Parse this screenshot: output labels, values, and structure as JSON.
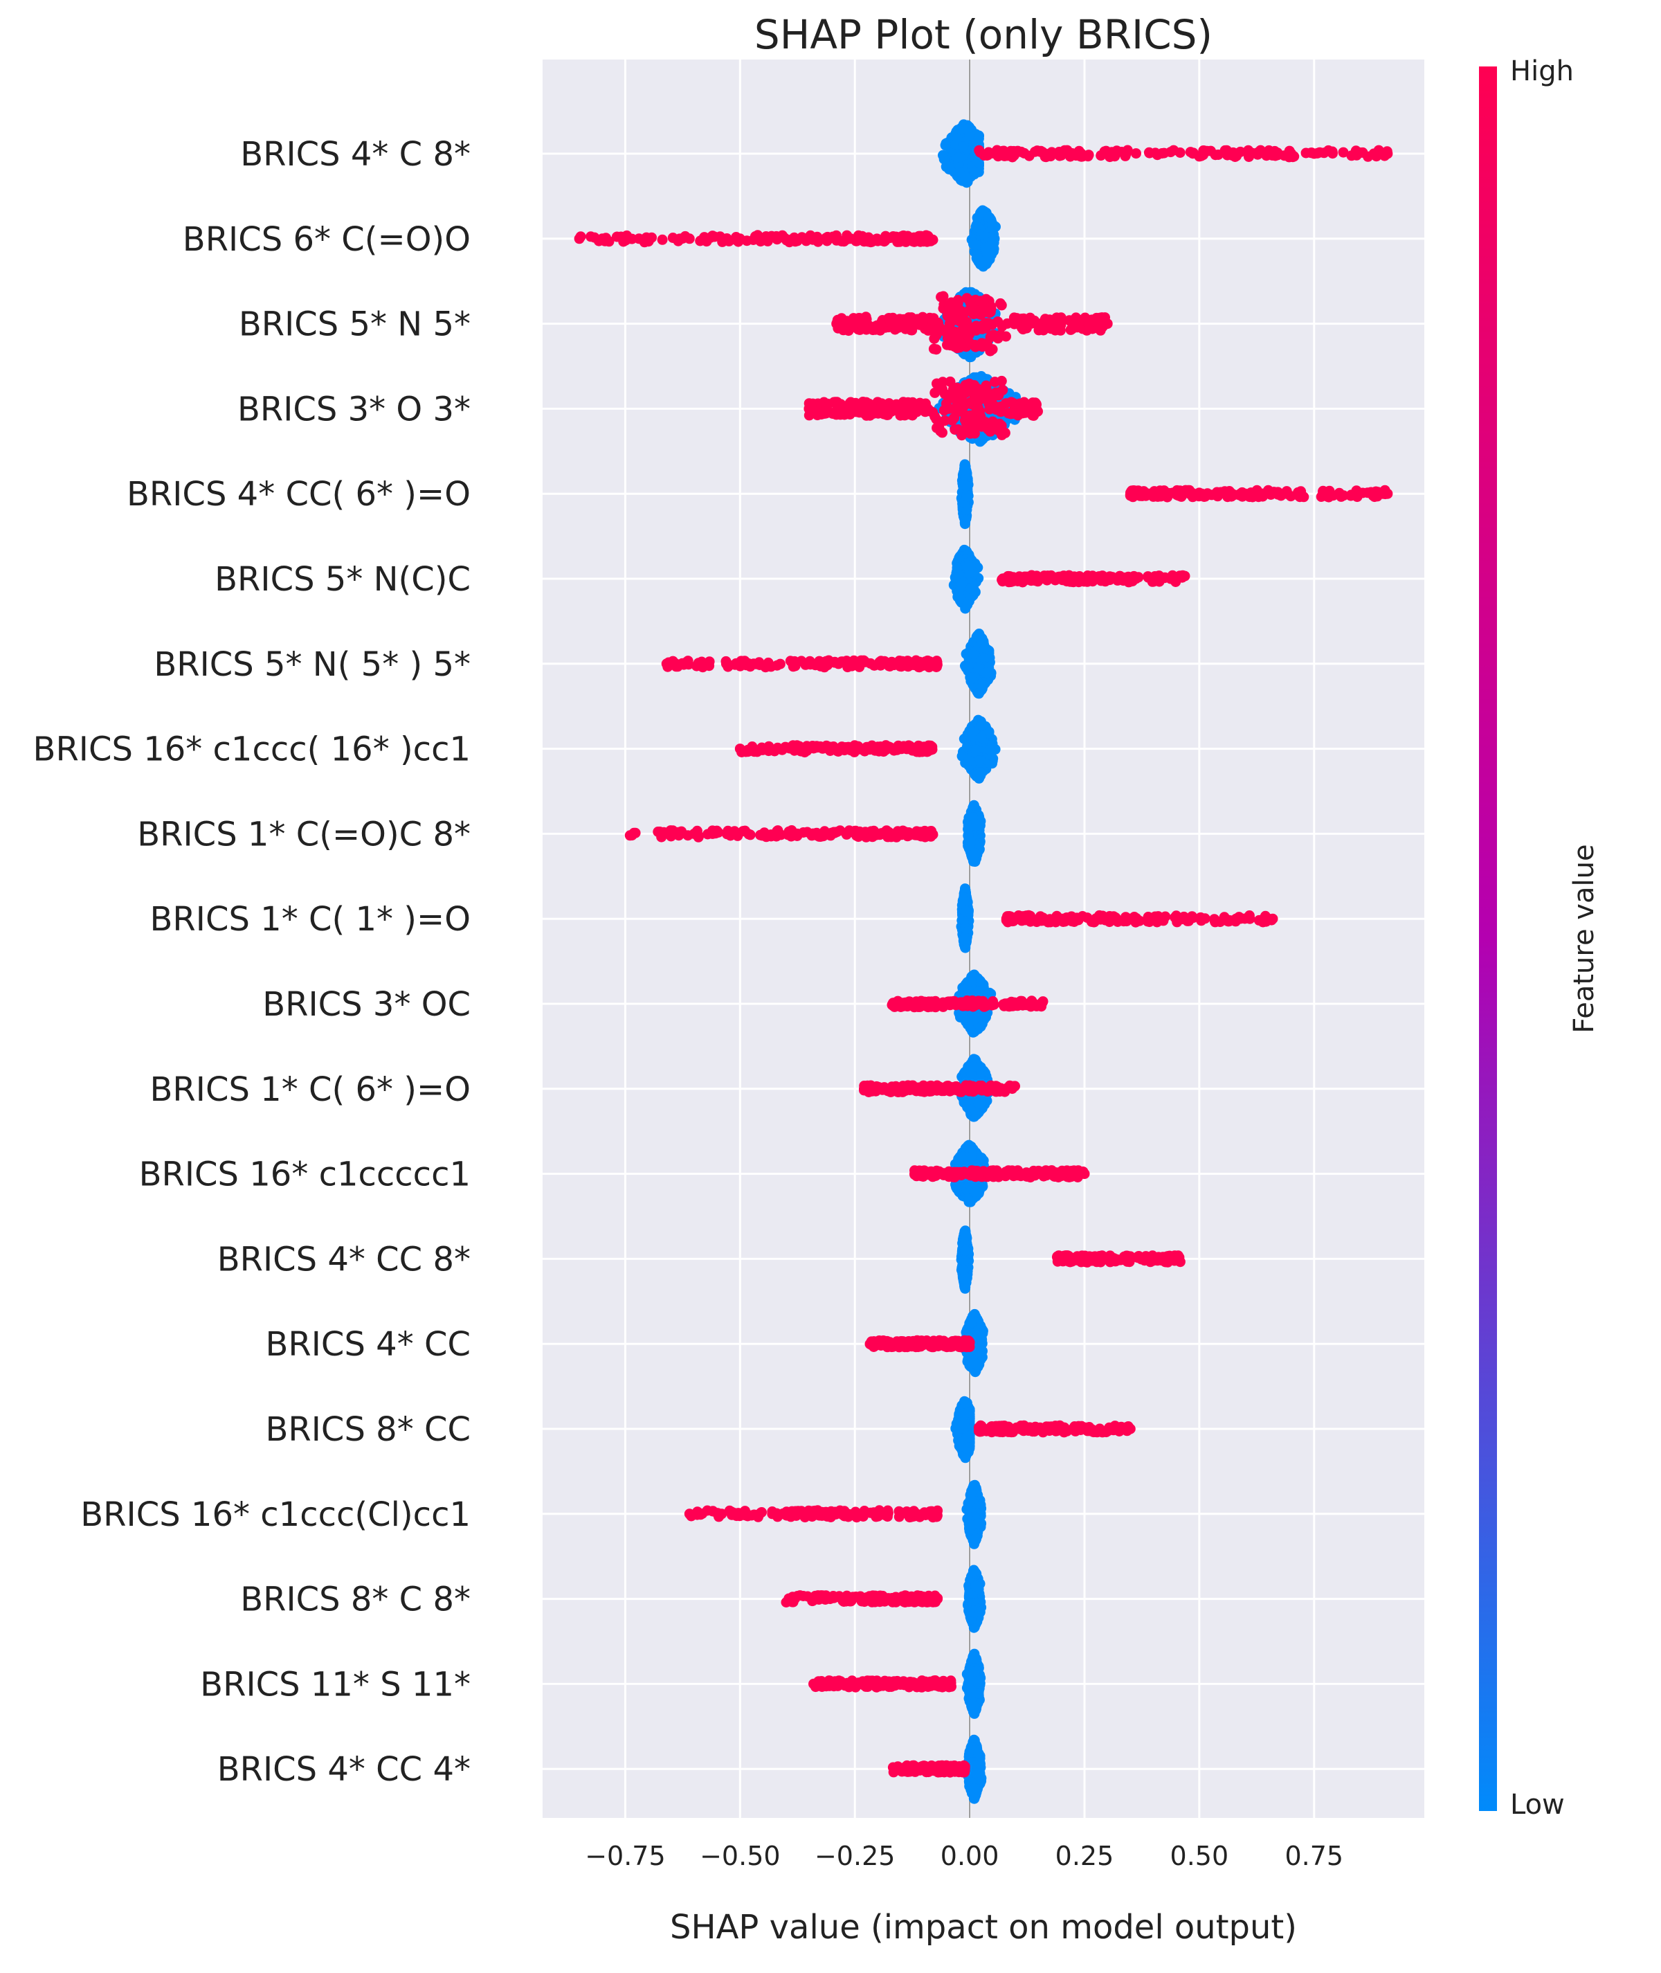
{
  "chart_data": {
    "type": "scatter",
    "title": "SHAP Plot (only BRICS)",
    "xlabel": "SHAP value (impact on model output)",
    "ylabel": "",
    "xlim": [
      -0.93,
      0.99
    ],
    "xticks": [
      -0.75,
      -0.5,
      -0.25,
      0.0,
      0.25,
      0.5,
      0.75
    ],
    "xtick_labels": [
      "−0.75",
      "−0.50",
      "−0.25",
      "0.00",
      "0.25",
      "0.50",
      "0.75"
    ],
    "grid": true,
    "colorbar": {
      "label": "Feature value",
      "high_label": "High",
      "low_label": "Low",
      "high_color": "#ff0052",
      "mid_color": "#b400b0",
      "low_color": "#008bfb"
    },
    "background_color": "#eaeaf2",
    "features": [
      {
        "name": "BRICS  4* C 8*",
        "high": {
          "min": 0.02,
          "max": 0.91,
          "sparse": [
            0.65,
            0.67,
            0.7,
            0.75,
            0.88,
            0.9,
            0.91
          ]
        },
        "low": {
          "min": -0.1,
          "max": 0.02,
          "center": -0.01
        }
      },
      {
        "name": "BRICS  6* C(=O)O",
        "high": {
          "min": -0.85,
          "max": -0.08,
          "sparse": [
            -0.85,
            -0.8,
            -0.74,
            -0.72,
            -0.61,
            -0.58
          ]
        },
        "low": {
          "min": -0.01,
          "max": 0.06,
          "center": 0.03
        }
      },
      {
        "name": "BRICS  5* N 5*",
        "high": {
          "min": -0.29,
          "max": 0.3,
          "sparse": [
            -0.29,
            -0.26,
            0.3
          ]
        },
        "low": {
          "min": -0.08,
          "max": 0.07,
          "center": 0.0
        },
        "mixed": true
      },
      {
        "name": "BRICS  3* O 3*",
        "high": {
          "min": -0.35,
          "max": 0.15,
          "sparse": [
            -0.35
          ]
        },
        "low": {
          "min": -0.08,
          "max": 0.13,
          "center": 0.02
        },
        "mixed": true
      },
      {
        "name": "BRICS  4* CC( 6* )=O",
        "high": {
          "min": 0.35,
          "max": 0.91,
          "sparse": [
            0.6,
            0.64,
            0.69,
            0.9,
            0.91
          ]
        },
        "low": {
          "min": -0.02,
          "max": 0.0,
          "center": -0.01
        }
      },
      {
        "name": "BRICS  5* N(C)C",
        "high": {
          "min": 0.07,
          "max": 0.47,
          "sparse": []
        },
        "low": {
          "min": -0.05,
          "max": 0.02,
          "center": -0.01
        }
      },
      {
        "name": "BRICS  5* N( 5* ) 5*",
        "high": {
          "min": -0.66,
          "max": -0.07,
          "sparse": [
            -0.66,
            -0.64,
            -0.59,
            -0.53
          ]
        },
        "low": {
          "min": -0.01,
          "max": 0.06,
          "center": 0.02
        }
      },
      {
        "name": "BRICS  16* c1ccc( 16* )cc1",
        "high": {
          "min": -0.5,
          "max": -0.08,
          "sparse": [
            -0.5,
            -0.44
          ]
        },
        "low": {
          "min": -0.02,
          "max": 0.07,
          "center": 0.02
        }
      },
      {
        "name": "BRICS  1* C(=O)C 8*",
        "high": {
          "min": -0.75,
          "max": -0.08,
          "sparse": [
            -0.63,
            -0.6,
            -0.56,
            -0.52
          ]
        },
        "low": {
          "min": -0.01,
          "max": 0.03,
          "center": 0.01
        }
      },
      {
        "name": "BRICS  1* C( 1* )=O",
        "high": {
          "min": 0.08,
          "max": 0.66,
          "sparse": [
            0.08,
            0.16,
            0.22,
            0.58,
            0.61,
            0.64,
            0.66
          ]
        },
        "low": {
          "min": -0.02,
          "max": 0.0,
          "center": -0.01
        }
      },
      {
        "name": "BRICS  3* OC",
        "high": {
          "min": -0.17,
          "max": 0.16,
          "sparse": []
        },
        "low": {
          "min": -0.03,
          "max": 0.06,
          "center": 0.01
        }
      },
      {
        "name": "BRICS  1* C( 6* )=O",
        "high": {
          "min": -0.23,
          "max": 0.1,
          "sparse": [
            -0.23
          ]
        },
        "low": {
          "min": -0.02,
          "max": 0.06,
          "center": 0.01
        }
      },
      {
        "name": "BRICS  16* c1ccccc1",
        "high": {
          "min": -0.12,
          "max": 0.25,
          "sparse": [
            -0.12,
            0.25
          ]
        },
        "low": {
          "min": -0.05,
          "max": 0.04,
          "center": 0.0
        }
      },
      {
        "name": "BRICS  4* CC 8*",
        "high": {
          "min": 0.19,
          "max": 0.46,
          "sparse": []
        },
        "low": {
          "min": -0.02,
          "max": 0.0,
          "center": -0.01
        }
      },
      {
        "name": "BRICS  4* CC",
        "high": {
          "min": -0.22,
          "max": 0.0,
          "sparse": []
        },
        "low": {
          "min": -0.01,
          "max": 0.05,
          "center": 0.01
        }
      },
      {
        "name": "BRICS  8* CC",
        "high": {
          "min": 0.02,
          "max": 0.35,
          "sparse": [
            0.35
          ]
        },
        "low": {
          "min": -0.05,
          "max": 0.0,
          "center": -0.01
        }
      },
      {
        "name": "BRICS  16* c1ccc(Cl)cc1",
        "high": {
          "min": -0.61,
          "max": -0.07,
          "sparse": [
            -0.61,
            -0.54,
            -0.51,
            -0.43,
            -0.36
          ]
        },
        "low": {
          "min": -0.01,
          "max": 0.03,
          "center": 0.01
        }
      },
      {
        "name": "BRICS  8* C 8*",
        "high": {
          "min": -0.4,
          "max": -0.07,
          "sparse": [
            -0.09,
            -0.07
          ]
        },
        "low": {
          "min": -0.01,
          "max": 0.03,
          "center": 0.01
        }
      },
      {
        "name": "BRICS  11* S 11*",
        "high": {
          "min": -0.34,
          "max": -0.04,
          "sparse": [
            -0.34
          ]
        },
        "low": {
          "min": -0.01,
          "max": 0.03,
          "center": 0.01
        }
      },
      {
        "name": "BRICS  4* CC 4*",
        "high": {
          "min": -0.17,
          "max": -0.01,
          "sparse": []
        },
        "low": {
          "min": -0.01,
          "max": 0.03,
          "center": 0.01
        }
      }
    ]
  }
}
